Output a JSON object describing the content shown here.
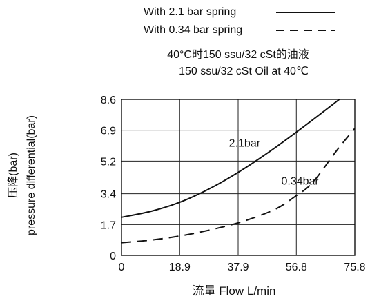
{
  "chart_data": {
    "type": "line",
    "legend": [
      {
        "label": "With 2.1 bar spring",
        "style": "solid"
      },
      {
        "label": "With 0.34 bar spring",
        "style": "dashed"
      }
    ],
    "note_cn": "40°C时150 ssu/32 cSt的油液",
    "note_en": "150 ssu/32 cSt Oil at 40℃",
    "ylabel_cn": "压降(bar)",
    "ylabel_en": "pressure differential(bar)",
    "xlabel": "流量 Flow  L/min",
    "xlim": [
      0,
      75.8
    ],
    "ylim": [
      0,
      8.6
    ],
    "xticks": [
      0,
      18.9,
      37.9,
      56.8,
      75.8
    ],
    "xtick_labels": [
      "0",
      "18.9",
      "37.9",
      "56.8",
      "75.8"
    ],
    "yticks": [
      0,
      1.7,
      3.4,
      5.2,
      6.9,
      8.6
    ],
    "ytick_labels": [
      "0",
      "1.7",
      "3.4",
      "5.2",
      "6.9",
      "8.6"
    ],
    "grid": true,
    "series": [
      {
        "name": "With 2.1 bar spring",
        "label": "2.1bar",
        "style": "solid",
        "x": [
          0,
          10,
          20,
          30,
          40,
          50,
          60,
          70,
          74.5
        ],
        "y": [
          2.1,
          2.45,
          3.0,
          3.8,
          4.8,
          5.95,
          7.2,
          8.5,
          9.1
        ]
      },
      {
        "name": "With 0.34 bar spring",
        "label": "0.34bar",
        "style": "dashed",
        "x": [
          0,
          10,
          20,
          30,
          40,
          50,
          56,
          62,
          70,
          75.8
        ],
        "y": [
          0.7,
          0.85,
          1.1,
          1.45,
          1.9,
          2.55,
          3.2,
          4.0,
          5.8,
          7.0
        ]
      }
    ],
    "series_label_positions": [
      {
        "series": 0,
        "at_x": 40,
        "at_y": 6.0
      },
      {
        "series": 1,
        "at_x": 58,
        "at_y": 3.9
      }
    ]
  }
}
